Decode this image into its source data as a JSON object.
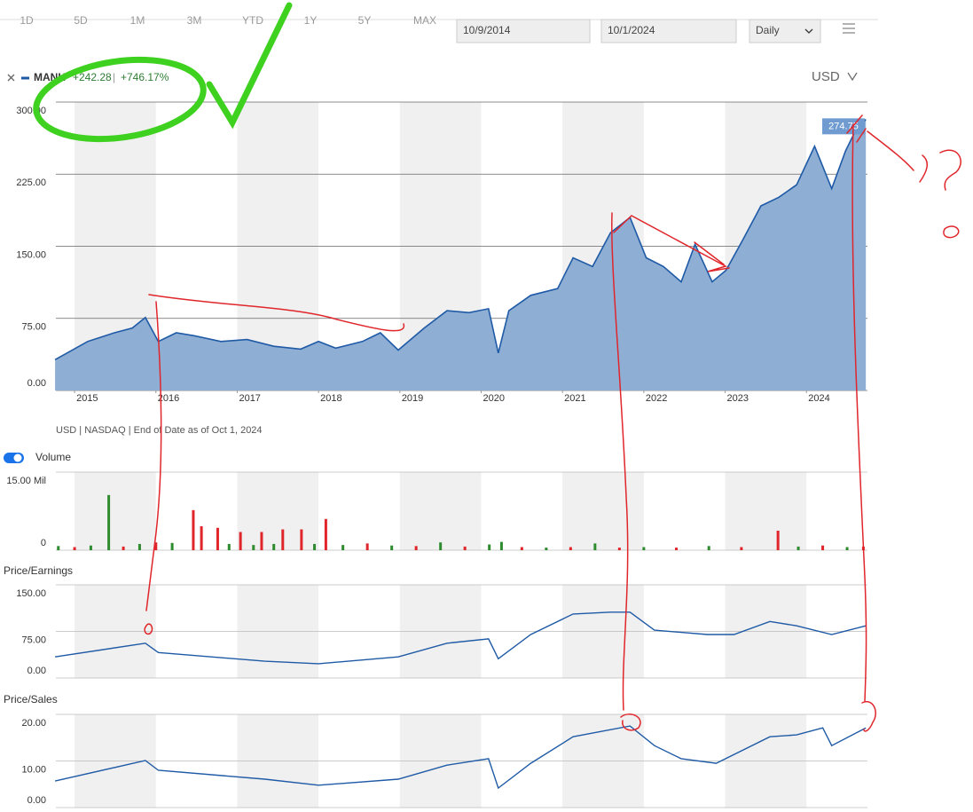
{
  "toolbar": {
    "ranges": [
      "1D",
      "5D",
      "1M",
      "3M",
      "YTD",
      "1Y",
      "5Y",
      "MAX"
    ],
    "start_date": "10/9/2014",
    "end_date": "10/1/2024",
    "frequency": "Daily"
  },
  "legend": {
    "symbol": "MANH",
    "change": "+242.28",
    "separator": "|",
    "change_percent": "+746.17%"
  },
  "currency": "USD",
  "source_note": "USD | NASDAQ | End of Date as of Oct 1, 2024",
  "chart_data": [
    {
      "type": "area",
      "color": "#1f5aa6",
      "fill": "#8eaed4",
      "grid": true,
      "x": [
        2014.76,
        2015.16,
        2015.49,
        2015.71,
        2015.87,
        2016.03,
        2016.25,
        2016.47,
        2016.8,
        2017.12,
        2017.45,
        2017.78,
        2018.0,
        2018.21,
        2018.54,
        2018.76,
        2018.98,
        2019.3,
        2019.58,
        2019.85,
        2020.09,
        2020.21,
        2020.34,
        2020.61,
        2020.94,
        2021.13,
        2021.37,
        2021.59,
        2021.83,
        2022.03,
        2022.24,
        2022.46,
        2022.63,
        2022.84,
        2023.01,
        2023.22,
        2023.44,
        2023.66,
        2023.88,
        2024.1,
        2024.31,
        2024.48,
        2024.59,
        2024.73
      ],
      "values": [
        32,
        51,
        60,
        65,
        76,
        51,
        60,
        57,
        51,
        53,
        46,
        43,
        51,
        44,
        51,
        60,
        42,
        65,
        83,
        81,
        85,
        39,
        83,
        99,
        106,
        138,
        129,
        164,
        180,
        138,
        129,
        113,
        152,
        113,
        125,
        157,
        192,
        201,
        214,
        254,
        210,
        249,
        268,
        282
      ],
      "last_price": 274.75,
      "xlim": [
        2014.77,
        2024.75
      ],
      "xticks": [
        2015,
        2016,
        2017,
        2018,
        2019,
        2020,
        2021,
        2022,
        2023,
        2024
      ],
      "ylim": [
        0,
        300
      ],
      "yticks": [
        {
          "value": 0,
          "label": "0.00"
        },
        {
          "value": 75,
          "label": "75.00"
        },
        {
          "value": 150,
          "label": "150.00"
        },
        {
          "value": 225,
          "label": "225.00"
        },
        {
          "value": 300,
          "label": "300.00"
        }
      ]
    },
    {
      "type": "bar",
      "title": "Volume",
      "grid": true,
      "x": [
        2014.8,
        2015.0,
        2015.2,
        2015.42,
        2015.6,
        2015.8,
        2016.0,
        2016.2,
        2016.46,
        2016.56,
        2016.76,
        2016.9,
        2017.04,
        2017.2,
        2017.3,
        2017.45,
        2017.56,
        2017.79,
        2017.95,
        2018.09,
        2018.3,
        2018.6,
        2018.9,
        2019.2,
        2019.5,
        2019.8,
        2020.1,
        2020.25,
        2020.5,
        2020.8,
        2021.1,
        2021.4,
        2021.7,
        2022.0,
        2022.4,
        2022.8,
        2023.2,
        2023.65,
        2023.9,
        2024.2,
        2024.5,
        2024.7
      ],
      "values": [
        0.8,
        0.6,
        0.9,
        10.6,
        0.7,
        1.2,
        1.5,
        1.4,
        7.7,
        4.6,
        4.3,
        1.2,
        3.5,
        1.0,
        3.5,
        1.2,
        4.0,
        4.0,
        1.2,
        6.0,
        1.0,
        1.3,
        0.9,
        0.8,
        1.5,
        0.7,
        1.1,
        1.6,
        0.6,
        0.5,
        0.6,
        1.3,
        0.5,
        0.6,
        0.5,
        0.8,
        0.6,
        3.75,
        0.7,
        0.9,
        0.6,
        0.7
      ],
      "colors": [
        "#2e8b2e",
        "#e0262b",
        "#2e8b2e",
        "#2e8b2e",
        "#e0262b",
        "#2e8b2e",
        "#e0262b",
        "#2e8b2e",
        "#e0262b",
        "#e0262b",
        "#e0262b",
        "#2e8b2e",
        "#e0262b",
        "#2e8b2e",
        "#e0262b",
        "#2e8b2e",
        "#e0262b",
        "#e0262b",
        "#2e8b2e",
        "#e0262b",
        "#2e8b2e",
        "#e0262b",
        "#2e8b2e",
        "#e0262b",
        "#2e8b2e",
        "#e0262b",
        "#2e8b2e",
        "#2e8b2e",
        "#e0262b",
        "#2e8b2e",
        "#e0262b",
        "#2e8b2e",
        "#e0262b",
        "#2e8b2e",
        "#e0262b",
        "#2e8b2e",
        "#e0262b",
        "#e0262b",
        "#2e8b2e",
        "#e0262b",
        "#2e8b2e",
        "#e0262b"
      ],
      "xlim": [
        2014.77,
        2024.75
      ],
      "ylim": [
        0,
        15
      ],
      "yticks": [
        0,
        {
          "value": 15,
          "label": "15.00 Mil"
        }
      ]
    },
    {
      "type": "line",
      "title": "Price/Earnings",
      "color": "#1f5aa6",
      "grid": true,
      "x": [
        2014.76,
        2015.87,
        2016.03,
        2017.34,
        2018.0,
        2018.98,
        2019.58,
        2020.09,
        2020.21,
        2020.61,
        2021.13,
        2021.59,
        2021.83,
        2022.13,
        2022.78,
        2023.11,
        2023.55,
        2023.88,
        2024.31,
        2024.73
      ],
      "values": [
        34,
        56,
        41,
        27,
        23,
        34,
        56,
        63,
        31,
        70,
        103,
        106,
        106,
        77,
        70,
        70,
        91,
        84,
        70,
        84
      ],
      "xlim": [
        2014.77,
        2024.75
      ],
      "ylim": [
        0,
        150
      ],
      "yticks": [
        {
          "value": 0,
          "label": "0.00"
        },
        {
          "value": 75,
          "label": "75.00"
        },
        {
          "value": 150,
          "label": "150.00"
        }
      ]
    },
    {
      "type": "line",
      "title": "Price/Sales",
      "color": "#1f5aa6",
      "grid": true,
      "x": [
        2014.76,
        2015.87,
        2016.03,
        2017.34,
        2018.0,
        2018.98,
        2019.58,
        2020.09,
        2020.21,
        2020.61,
        2021.13,
        2021.83,
        2022.13,
        2022.46,
        2022.89,
        2023.55,
        2023.88,
        2024.2,
        2024.31,
        2024.73
      ],
      "values": [
        5.7,
        10.1,
        8,
        6.1,
        4.8,
        6.1,
        9.1,
        10.5,
        4.2,
        9.5,
        15.2,
        17.5,
        13.3,
        10.5,
        9.5,
        15.2,
        15.6,
        17.1,
        13.3,
        17.1
      ],
      "xlim": [
        2014.77,
        2024.75
      ],
      "ylim": [
        0,
        20
      ],
      "yticks": [
        {
          "value": 0,
          "label": "0.00"
        },
        {
          "value": 10,
          "label": "10.00"
        },
        {
          "value": 20,
          "label": "20.00"
        }
      ]
    }
  ]
}
